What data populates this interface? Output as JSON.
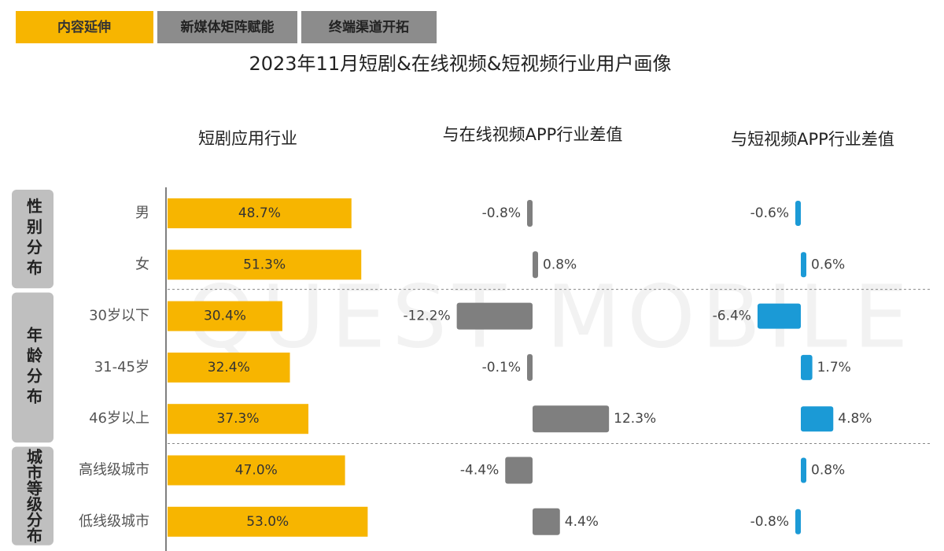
{
  "tabs": [
    "内容延伸",
    "新媒体矩阵赋能",
    "终端渠道开拓"
  ],
  "watermark": "QUEST MOBILE",
  "chart_data": {
    "type": "bar",
    "title": "2023年11月短剧&在线视频&短视频行业用户画像",
    "groups": [
      {
        "label": "性别分布",
        "categories": [
          "男",
          "女"
        ]
      },
      {
        "label": "年龄分布",
        "categories": [
          "30岁以下",
          "31-45岁",
          "46岁以上"
        ]
      },
      {
        "label": "城市等级分布",
        "categories": [
          "高线级城市",
          "低线级城市"
        ]
      }
    ],
    "series": [
      {
        "name": "短剧应用行业",
        "color": "#f7b500",
        "values": [
          48.7,
          51.3,
          30.4,
          32.4,
          37.3,
          47.0,
          53.0
        ],
        "value_labels": [
          "48.7%",
          "51.3%",
          "30.4%",
          "32.4%",
          "37.3%",
          "47.0%",
          "53.0%"
        ]
      },
      {
        "name": "与在线视频APP行业差值",
        "color": "#7f7f7f",
        "values": [
          -0.8,
          0.8,
          -12.2,
          -0.1,
          12.3,
          -4.4,
          4.4
        ],
        "value_labels": [
          "-0.8%",
          "0.8%",
          "-12.2%",
          "-0.1%",
          "12.3%",
          "-4.4%",
          "4.4%"
        ]
      },
      {
        "name": "与短视频APP行业差值",
        "color": "#1b9ad6",
        "values": [
          -0.6,
          0.6,
          -6.4,
          1.7,
          4.8,
          0.8,
          -0.8
        ],
        "value_labels": [
          "-0.6%",
          "0.6%",
          "-6.4%",
          "1.7%",
          "4.8%",
          "0.8%",
          "-0.8%"
        ]
      }
    ]
  }
}
